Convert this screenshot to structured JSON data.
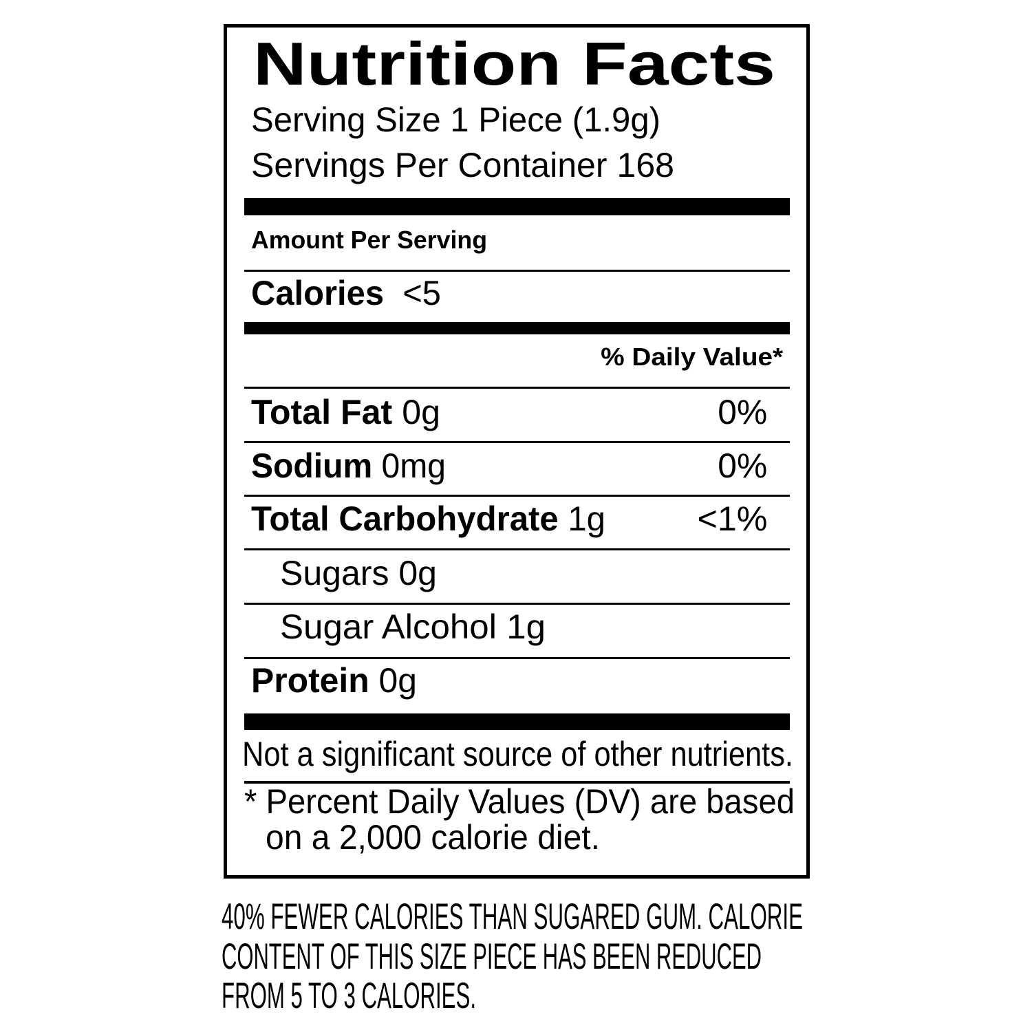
{
  "label": {
    "title": "Nutrition Facts",
    "serving_size": "Serving Size 1 Piece (1.9g)",
    "servings_per_container": "Servings Per Container 168",
    "amount_per_serving": "Amount Per Serving",
    "calories": {
      "label": "Calories",
      "value": "<5"
    },
    "daily_value_header": "% Daily Value*",
    "nutrients": [
      {
        "label": "Total Fat",
        "amount": "0g",
        "dv": "0%"
      },
      {
        "label": "Sodium",
        "amount": "0mg",
        "dv": "0%"
      },
      {
        "label": "Total Carbohydrate",
        "amount": "1g",
        "dv": "<1%"
      },
      {
        "label": "Sugars",
        "amount": "0g"
      },
      {
        "label": "Sugar Alcohol",
        "amount": "1g"
      },
      {
        "label": "Protein",
        "amount": "0g"
      }
    ],
    "not_significant": "Not a significant source of other nutrients.",
    "footnote_line1": "* Percent Daily Values (DV) are based",
    "footnote_line2": "on a 2,000 calorie diet."
  },
  "claim": {
    "line1": "40% FEWER CALORIES THAN SUGARED GUM. CALORIE",
    "line2": "CONTENT OF THIS SIZE PIECE HAS BEEN REDUCED",
    "line3": "FROM 5 TO 3 CALORIES."
  }
}
